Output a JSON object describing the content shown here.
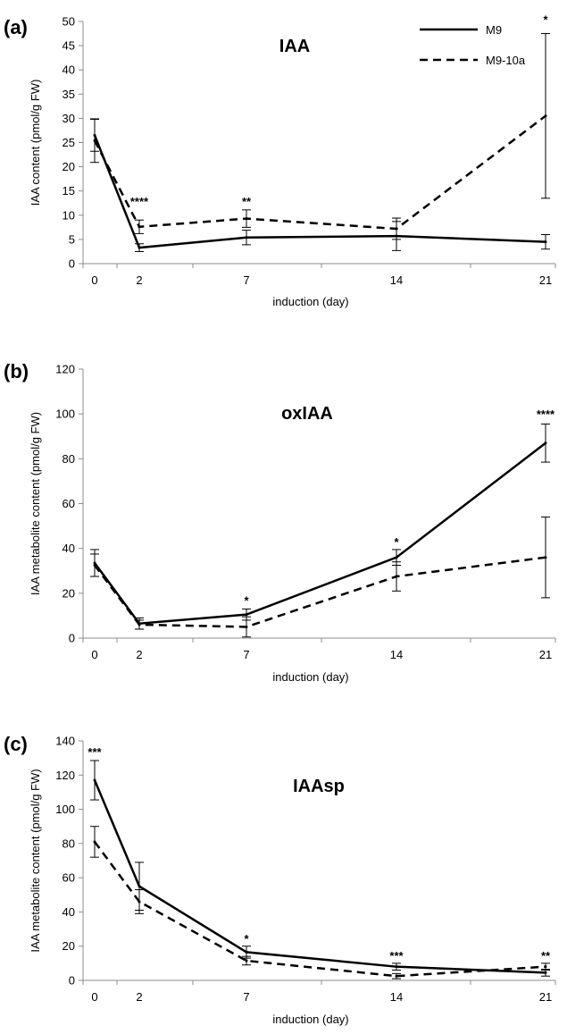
{
  "figure": {
    "legend": [
      {
        "name": "M9",
        "style": "solid"
      },
      {
        "name": "M9-10a",
        "style": "dashed"
      }
    ],
    "legend_position": "top-right of panel (a)"
  },
  "chart_data": [
    {
      "type": "line",
      "panel_label": "(a)",
      "title": "IAA",
      "xlabel": "induction (day)",
      "ylabel": "IAA content (pmol/g FW)",
      "x": [
        0,
        2,
        7,
        14,
        21
      ],
      "x_ticks": [
        "0",
        "2",
        "7",
        "14",
        "21"
      ],
      "ylim": [
        0,
        50
      ],
      "y_ticks": [
        0,
        5,
        10,
        15,
        20,
        25,
        30,
        35,
        40,
        45,
        50
      ],
      "grid": false,
      "series": [
        {
          "name": "M9",
          "style": "solid",
          "values": [
            26.5,
            3.3,
            5.4,
            5.7,
            4.5
          ],
          "errors": [
            3.3,
            0.8,
            1.5,
            3.0,
            1.5
          ]
        },
        {
          "name": "M9-10a",
          "style": "dashed",
          "values": [
            25.4,
            7.6,
            9.3,
            7.2,
            30.5
          ],
          "errors": [
            4.5,
            1.4,
            1.8,
            2.2,
            17.0
          ]
        }
      ],
      "significance": [
        {
          "x": 2,
          "label": "****",
          "y": 12.0
        },
        {
          "x": 7,
          "label": "**",
          "y": 12.0
        },
        {
          "x": 21,
          "label": "*",
          "y": 49.5
        }
      ]
    },
    {
      "type": "line",
      "panel_label": "(b)",
      "title": "oxIAA",
      "xlabel": "induction (day)",
      "ylabel": "IAA metabolite content (pmol/g FW)",
      "x": [
        0,
        2,
        7,
        14,
        21
      ],
      "x_ticks": [
        "0",
        "2",
        "7",
        "14",
        "21"
      ],
      "ylim": [
        0,
        120
      ],
      "y_ticks": [
        0,
        20,
        40,
        60,
        80,
        100,
        120
      ],
      "grid": false,
      "series": [
        {
          "name": "M9",
          "style": "solid",
          "values": [
            33.5,
            6.5,
            10.5,
            36.0,
            87.0
          ],
          "errors": [
            6.0,
            2.5,
            2.5,
            3.5,
            8.5
          ]
        },
        {
          "name": "M9-10a",
          "style": "dashed",
          "values": [
            32.5,
            6.0,
            5.0,
            27.5,
            36.0
          ],
          "errors": [
            5.0,
            2.0,
            4.5,
            6.5,
            18.0
          ]
        }
      ],
      "significance": [
        {
          "x": 7,
          "label": "*",
          "y": 15.0
        },
        {
          "x": 14,
          "label": "*",
          "y": 41.0
        },
        {
          "x": 21,
          "label": "****",
          "y": 98.0
        }
      ]
    },
    {
      "type": "line",
      "panel_label": "(c)",
      "title": "IAAsp",
      "xlabel": "induction (day)",
      "ylabel": "IAA metabolite content (pmol/g FW)",
      "x": [
        0,
        2,
        7,
        14,
        21
      ],
      "x_ticks": [
        "0",
        "2",
        "7",
        "14",
        "21"
      ],
      "ylim": [
        0,
        140
      ],
      "y_ticks": [
        0,
        20,
        40,
        60,
        80,
        100,
        120,
        140
      ],
      "grid": false,
      "series": [
        {
          "name": "M9",
          "style": "solid",
          "values": [
            117.0,
            55.0,
            16.5,
            8.0,
            4.5
          ],
          "errors": [
            11.5,
            14.0,
            3.5,
            2.0,
            2.0
          ]
        },
        {
          "name": "M9-10a",
          "style": "dashed",
          "values": [
            81.0,
            46.0,
            11.5,
            2.5,
            8.0
          ],
          "errors": [
            9.0,
            7.0,
            2.5,
            1.5,
            2.0
          ]
        }
      ],
      "significance": [
        {
          "x": 0,
          "label": "***",
          "y": 131.0
        },
        {
          "x": 7,
          "label": "*",
          "y": 22.0
        },
        {
          "x": 14,
          "label": "***",
          "y": 12.0
        },
        {
          "x": 21,
          "label": "**",
          "y": 12.0
        }
      ]
    }
  ]
}
